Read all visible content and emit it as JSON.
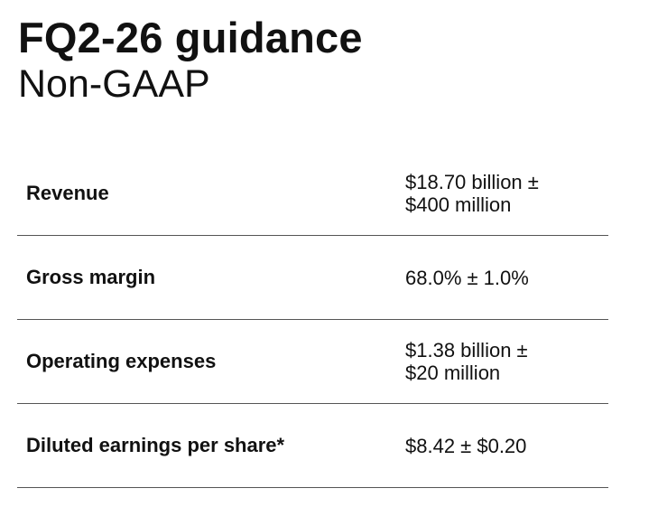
{
  "header": {
    "title": "FQ2-26 guidance",
    "subtitle": "Non-GAAP"
  },
  "table": {
    "rows": [
      {
        "label": "Revenue",
        "value_lines": [
          "$18.70 billion ±",
          "$400 million"
        ]
      },
      {
        "label": "Gross margin",
        "value_lines": [
          "68.0% ± 1.0%"
        ]
      },
      {
        "label": "Operating expenses",
        "value_lines": [
          "$1.38 billion ±",
          "$20 million"
        ]
      },
      {
        "label": "Diluted earnings per share*",
        "value_lines": [
          "$8.42 ± $0.20"
        ]
      }
    ]
  }
}
